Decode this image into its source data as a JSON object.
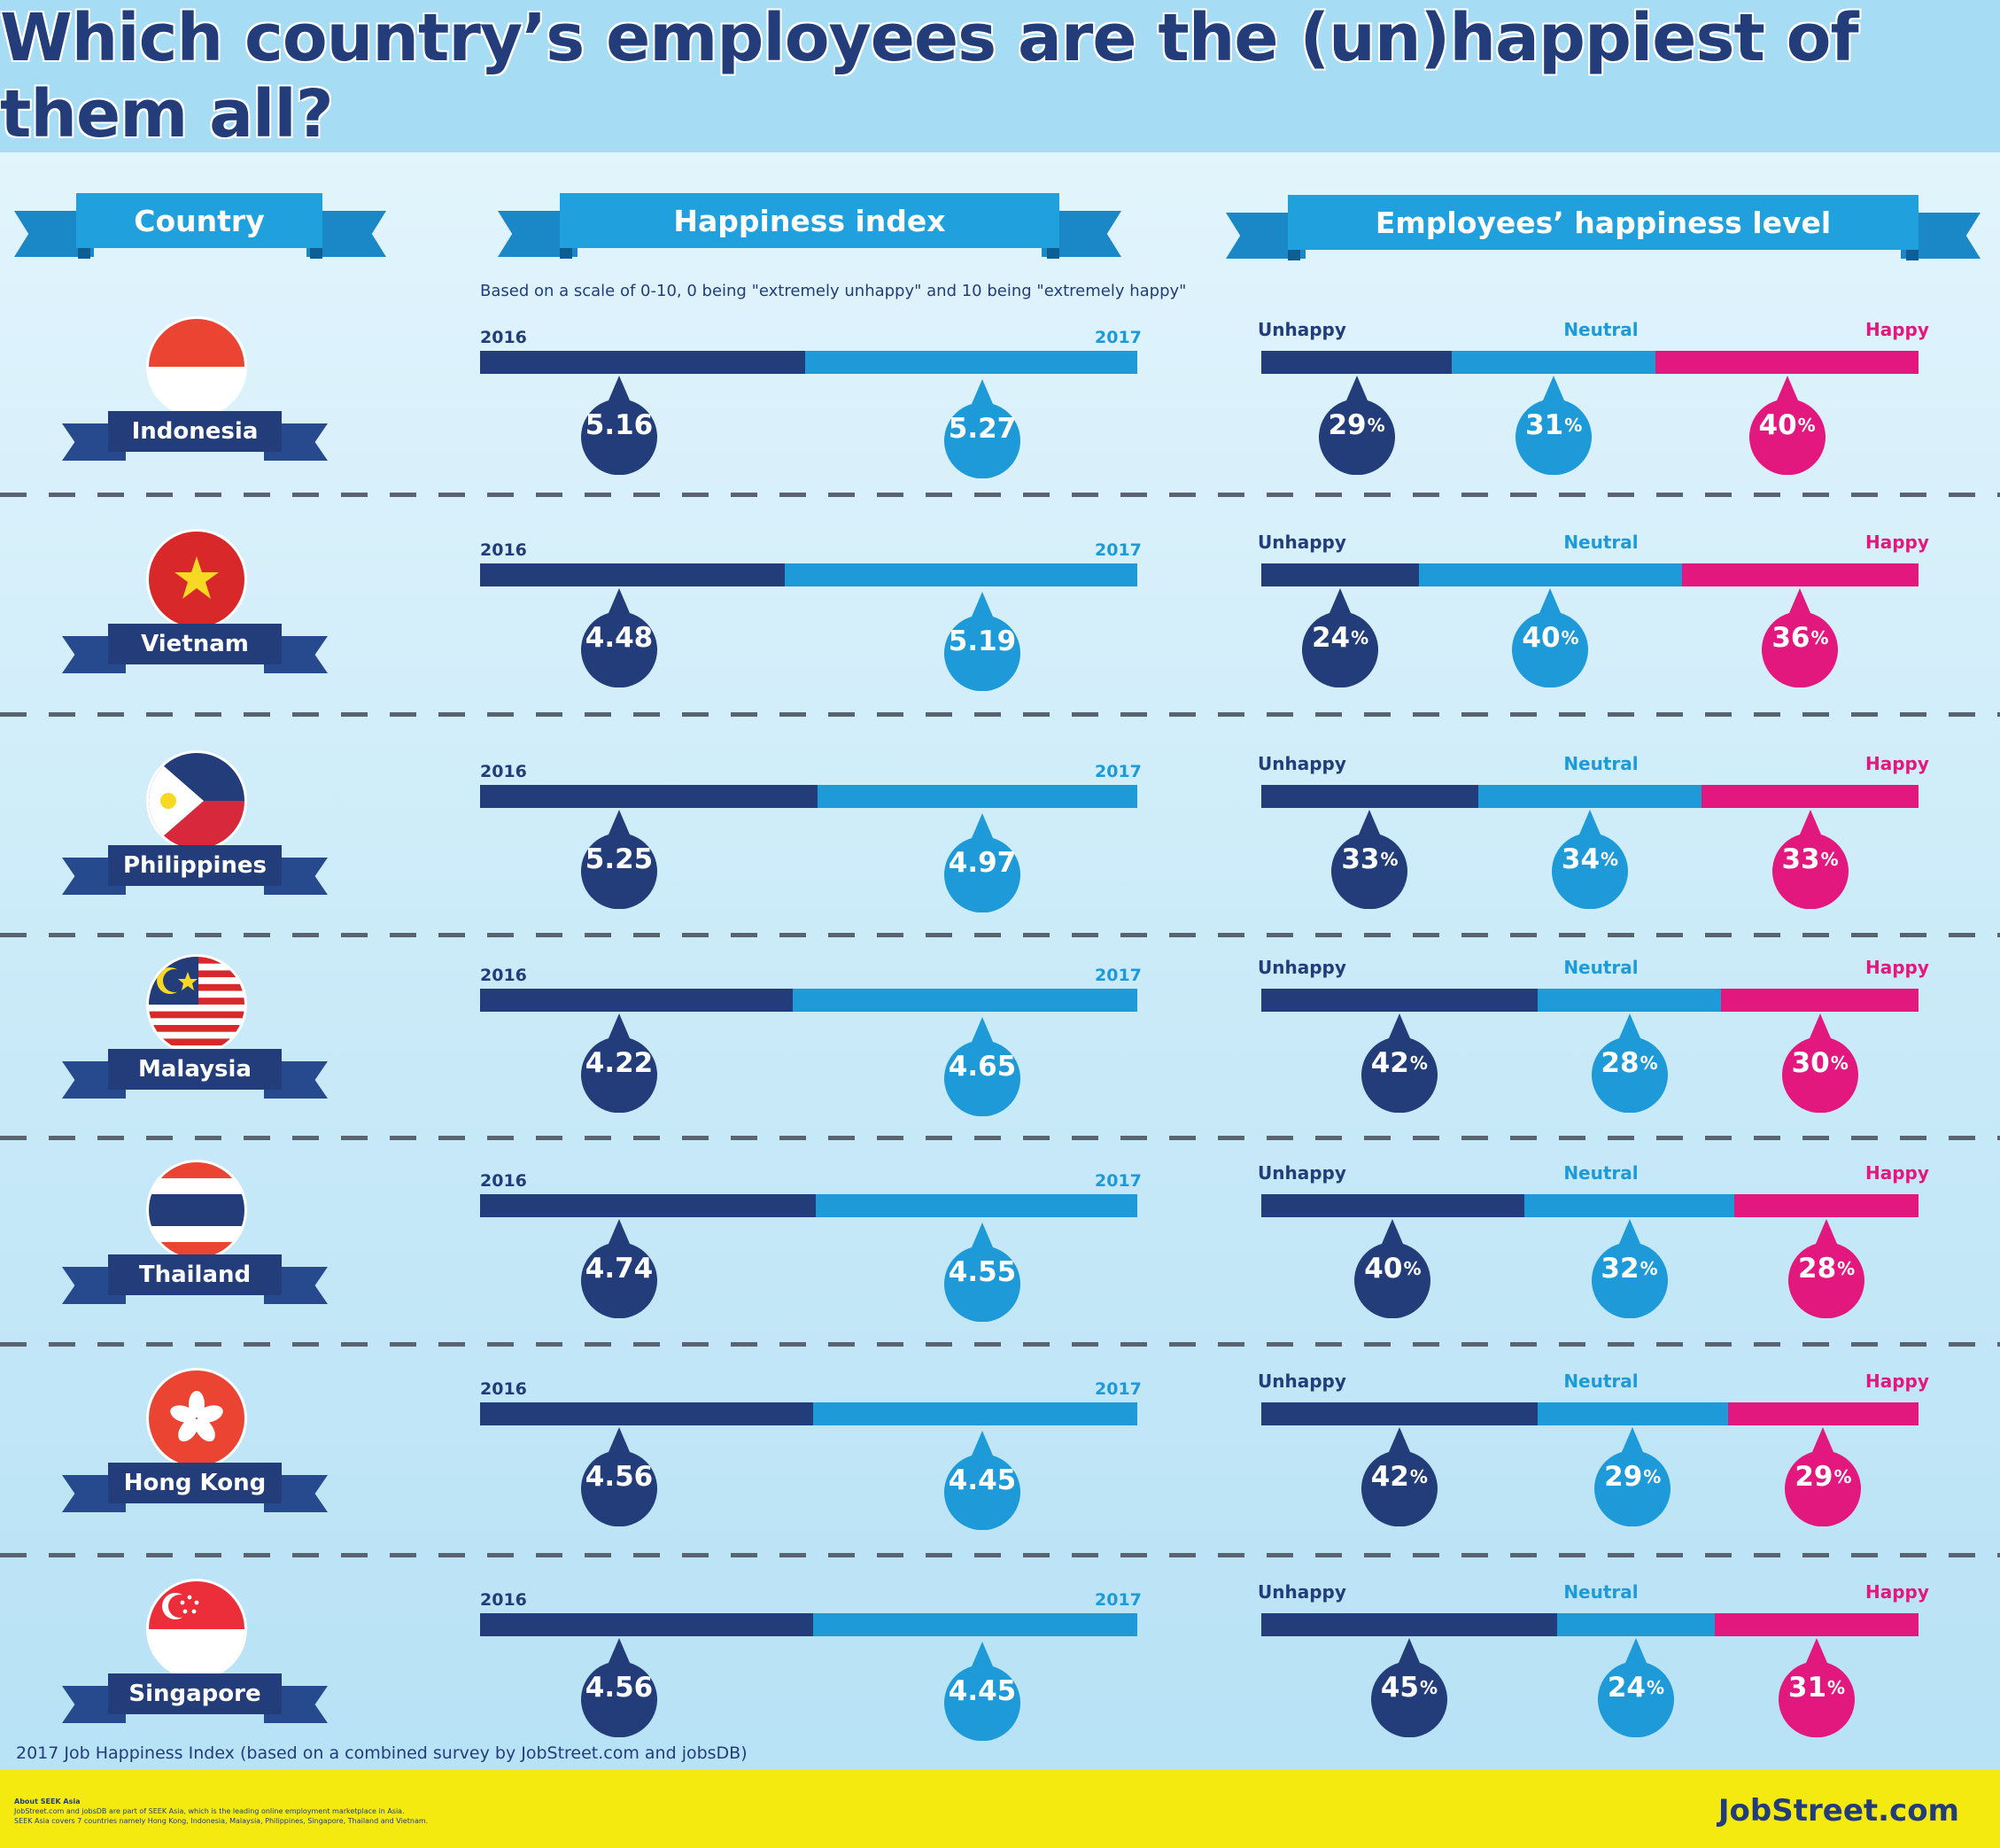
{
  "title": "Which country’s employees are the (un)happiest of them all?",
  "headers": {
    "country": "Country",
    "index": "Happiness index",
    "level": "Employees’ happiness level"
  },
  "scale_note": "Based on a scale of 0-10, 0 being \"extremely unhappy\" and 10 being \"extremely happy\"",
  "year_labels": {
    "y2016": "2016",
    "y2017": "2017"
  },
  "level_labels": {
    "unhappy": "Unhappy",
    "neutral": "Neutral",
    "happy": "Happy"
  },
  "percent_sign": "%",
  "colors": {
    "dark_navy": "#223d7a",
    "blue": "#1d9ad7",
    "pink": "#e3187f",
    "ribbon": "#223d7a",
    "header_ribbon": "#20a0dc"
  },
  "source": "2017 Job Happiness Index (based on a combined survey by JobStreet.com and jobsDB)",
  "footer": {
    "about_title": "About SEEK Asia",
    "about_line1": "JobStreet.com and jobsDB are part of SEEK Asia, which is the leading online employment marketplace in Asia.",
    "about_line2": "SEEK Asia covers 7 countries namely Hong Kong, Indonesia, Malaysia, Philippines, Singapore, Thailand and Vietnam.",
    "logo": "JobStreet.com"
  },
  "chart_data": {
    "type": "table",
    "columns": [
      "Country",
      "Happiness index 2016",
      "Happiness index 2017",
      "Unhappy %",
      "Neutral %",
      "Happy %"
    ],
    "rows": [
      {
        "country": "Indonesia",
        "flag": "indonesia-flag",
        "idx2016": "5.16",
        "idx2017": "5.27",
        "unhappy": 29,
        "neutral": 31,
        "happy": 40,
        "neutral_label": "31"
      },
      {
        "country": "Vietnam",
        "flag": "vietnam-flag",
        "idx2016": "4.48",
        "idx2017": "5.19",
        "unhappy": 24,
        "neutral": 40,
        "happy": 36,
        "neutral_label": "40 "
      },
      {
        "country": "Philippines",
        "flag": "philippines-flag",
        "idx2016": "5.25",
        "idx2017": "4.97",
        "unhappy": 33,
        "neutral": 34,
        "happy": 33,
        "neutral_label": "34"
      },
      {
        "country": "Malaysia",
        "flag": "malaysia-flag",
        "idx2016": "4.22",
        "idx2017": "4.65",
        "unhappy": 42,
        "neutral": 28,
        "happy": 30,
        "neutral_label": "28"
      },
      {
        "country": "Thailand",
        "flag": "thailand-flag",
        "idx2016": "4.74",
        "idx2017": "4.55",
        "unhappy": 40,
        "neutral": 32,
        "happy": 28,
        "neutral_label": "32"
      },
      {
        "country": "Hong Kong",
        "flag": "hong-kong-flag",
        "idx2016": "4.56",
        "idx2017": "4.45",
        "unhappy": 42,
        "neutral": 29,
        "happy": 29,
        "neutral_label": "29"
      },
      {
        "country": "Singapore",
        "flag": "singapore-flag",
        "idx2016": "4.56",
        "idx2017": "4.45",
        "unhappy": 45,
        "neutral": 24,
        "happy": 31,
        "neutral_label": "24"
      }
    ],
    "index_scale": [
      0,
      10
    ]
  }
}
